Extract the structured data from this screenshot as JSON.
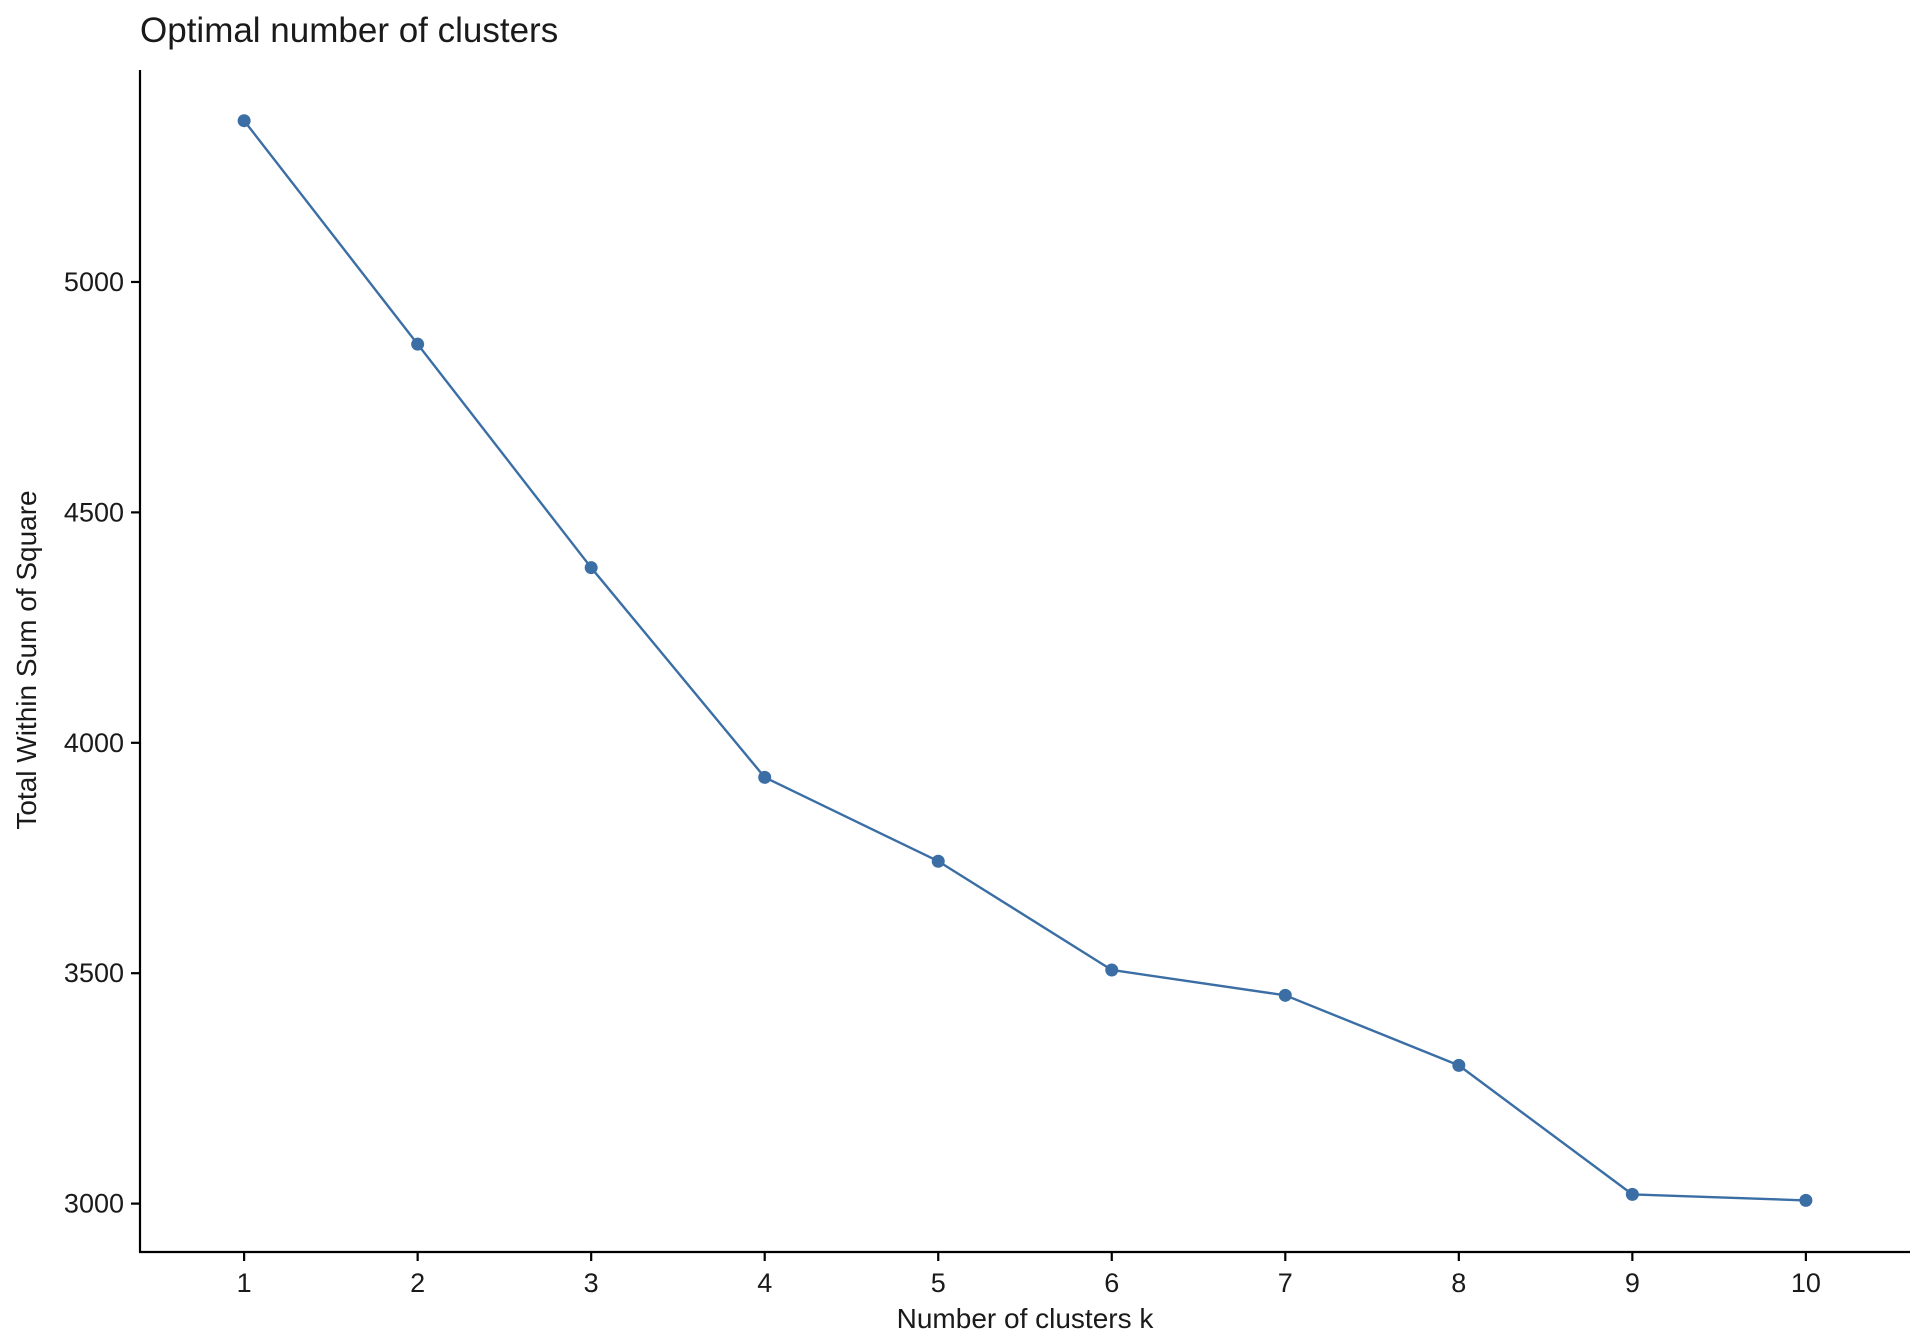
{
  "chart_data": {
    "type": "line",
    "title": "Optimal number of clusters",
    "xlabel": "Number of clusters k",
    "ylabel": "Total Within Sum of Square",
    "x": [
      1,
      2,
      3,
      4,
      5,
      6,
      7,
      8,
      9,
      10
    ],
    "x_tick_labels": [
      "1",
      "2",
      "3",
      "4",
      "5",
      "6",
      "7",
      "8",
      "9",
      "10"
    ],
    "y_ticks": [
      3000,
      3500,
      4000,
      4500,
      5000
    ],
    "y_tick_labels": [
      "3000",
      "3500",
      "4000",
      "4500",
      "5000"
    ],
    "xlim": [
      0.4,
      10.6
    ],
    "ylim": [
      2895,
      5460
    ],
    "grid": false,
    "series": [
      {
        "color": "#3a6ea5",
        "values": [
          5350,
          4865,
          4380,
          3925,
          3743,
          3507,
          3452,
          3300,
          3020,
          3007
        ]
      }
    ]
  }
}
